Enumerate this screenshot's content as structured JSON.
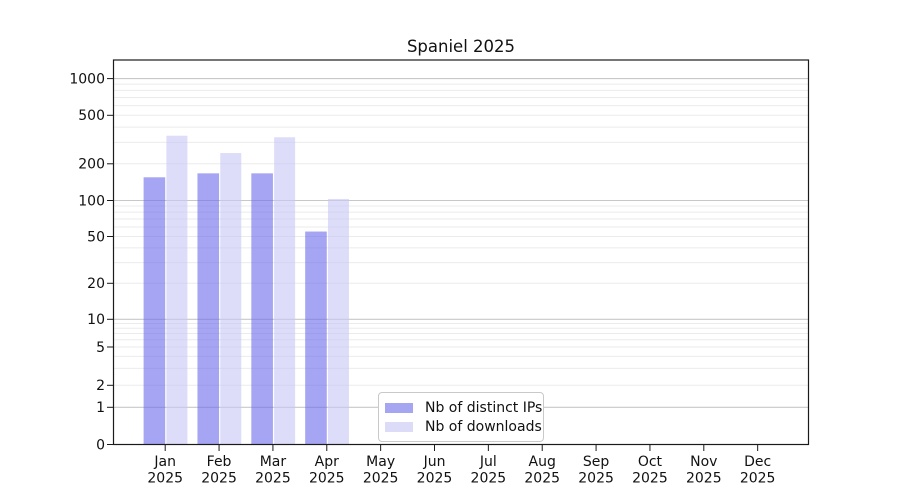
{
  "title": "Spaniel 2025",
  "legend": {
    "items": [
      {
        "label": "Nb of distinct IPs",
        "color": "#a5a5f2"
      },
      {
        "label": "Nb of downloads",
        "color": "#dcdcf9"
      }
    ]
  },
  "colors": {
    "ips_bar": "rgba(110,110,235,0.62)",
    "downloads_bar": "rgba(200,200,246,0.62)",
    "major_grid": "#c8c8c8",
    "minor_grid": "#ebebeb",
    "axis": "#1a1a1a"
  },
  "chart_data": {
    "type": "bar",
    "title": "Spaniel 2025",
    "categories": [
      "Jan 2025",
      "Feb 2025",
      "Mar 2025",
      "Apr 2025",
      "May 2025",
      "Jun 2025",
      "Jul 2025",
      "Aug 2025",
      "Sep 2025",
      "Oct 2025",
      "Nov 2025",
      "Dec 2025"
    ],
    "months": [
      "Jan",
      "Feb",
      "Mar",
      "Apr",
      "May",
      "Jun",
      "Jul",
      "Aug",
      "Sep",
      "Oct",
      "Nov",
      "Dec"
    ],
    "year": "2025",
    "series": [
      {
        "name": "Nb of distinct IPs",
        "color": "rgba(110,110,235,0.62)",
        "legend_color": "#a5a5f2",
        "values": [
          155,
          167,
          167,
          55,
          0,
          0,
          0,
          0,
          0,
          0,
          0,
          0
        ]
      },
      {
        "name": "Nb of downloads",
        "color": "rgba(200,200,246,0.62)",
        "legend_color": "#dcdcf9",
        "values": [
          340,
          245,
          330,
          103,
          0,
          0,
          0,
          0,
          0,
          0,
          0,
          0
        ]
      }
    ],
    "xlabel": "",
    "ylabel": "",
    "y_ticks": [
      0,
      1,
      2,
      5,
      10,
      20,
      50,
      100,
      200,
      500,
      1000
    ],
    "ylim": [
      0,
      1370
    ],
    "scale": "log-like (compressed near zero, 0 shown at baseline)",
    "grid": true,
    "legend_position": "lower center"
  }
}
